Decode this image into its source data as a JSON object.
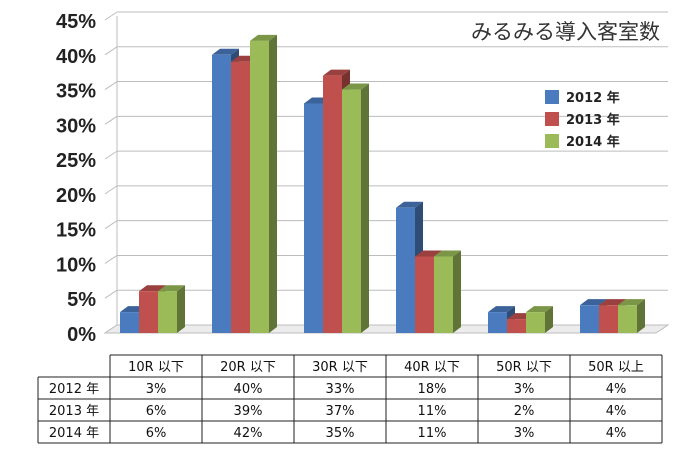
{
  "chart_data": {
    "type": "bar",
    "title": "みるみる導入客室数",
    "categories": [
      "10R 以下",
      "20R 以下",
      "30R 以下",
      "40R 以下",
      "50R 以下",
      "50R 以上"
    ],
    "series": [
      {
        "name": "2012 年",
        "color": "#4a7bbf",
        "values": [
          3,
          40,
          33,
          18,
          3,
          4
        ],
        "labels": [
          "3%",
          "40%",
          "33%",
          "18%",
          "3%",
          "4%"
        ]
      },
      {
        "name": "2013 年",
        "color": "#c0504d",
        "values": [
          6,
          39,
          37,
          11,
          2,
          4
        ],
        "labels": [
          "6%",
          "39%",
          "37%",
          "11%",
          "2%",
          "4%"
        ]
      },
      {
        "name": "2014 年",
        "color": "#9bbb59",
        "values": [
          6,
          42,
          35,
          11,
          3,
          4
        ],
        "labels": [
          "6%",
          "42%",
          "35%",
          "11%",
          "3%",
          "4%"
        ]
      }
    ],
    "ylim": [
      0,
      45
    ],
    "y_ticks": [
      "0%",
      "5%",
      "10%",
      "15%",
      "20%",
      "25%",
      "30%",
      "35%",
      "40%",
      "45%"
    ],
    "xlabel": "",
    "ylabel": "",
    "legend_position": "right",
    "grid": true
  }
}
